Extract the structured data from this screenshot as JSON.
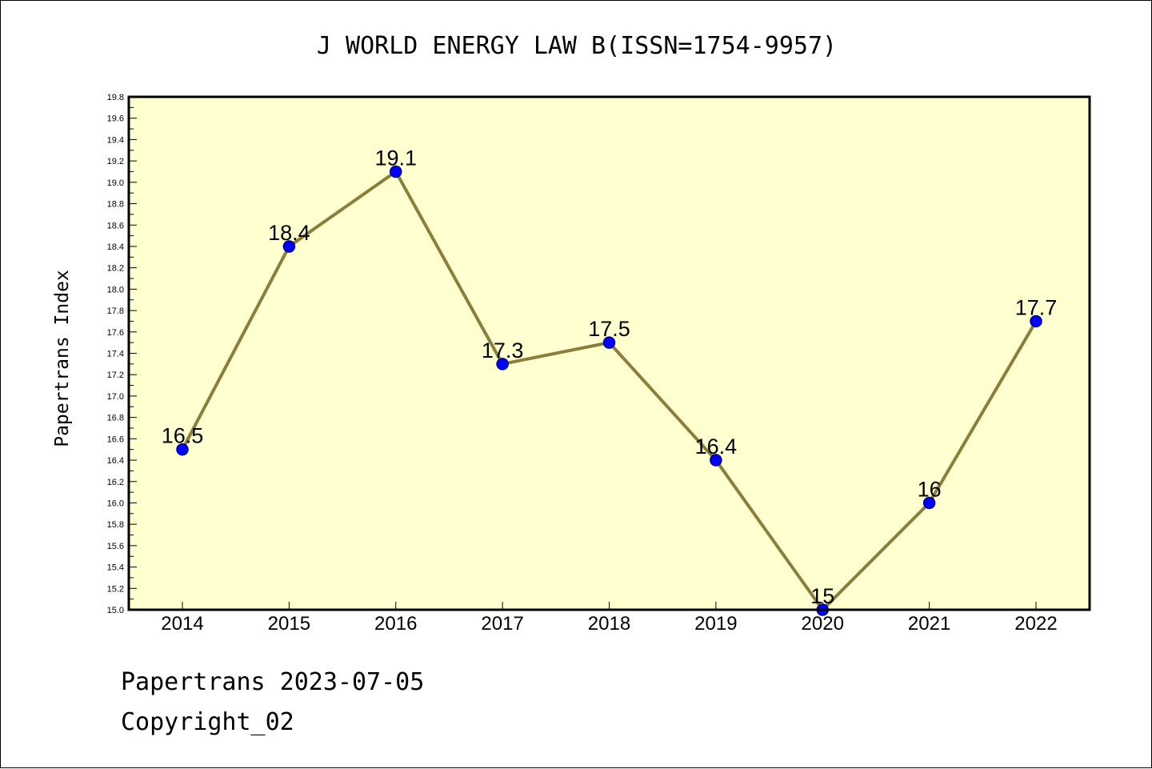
{
  "chart_data": {
    "type": "line",
    "title": "J WORLD ENERGY LAW B(ISSN=1754-9957)",
    "xlabel": "",
    "ylabel": "Papertrans Index",
    "categories": [
      "2014",
      "2015",
      "2016",
      "2017",
      "2018",
      "2019",
      "2020",
      "2021",
      "2022"
    ],
    "values": [
      16.5,
      18.4,
      19.1,
      17.3,
      17.5,
      16.4,
      15.0,
      16.0,
      17.7
    ],
    "data_labels": [
      "16.5",
      "18.4",
      "19.1",
      "17.3",
      "17.5",
      "16.4",
      "15",
      "16",
      "17.7"
    ],
    "ylim": [
      15.0,
      19.8
    ],
    "ytick_step": 0.2,
    "grid": false,
    "colors": {
      "plot_background": "#ffffd0",
      "line": "#8b7d3a",
      "marker": "#0000ff",
      "marker_edge": "#00008b"
    }
  },
  "footer": {
    "line1": "Papertrans 2023-07-05",
    "line2": "Copyright_02"
  }
}
